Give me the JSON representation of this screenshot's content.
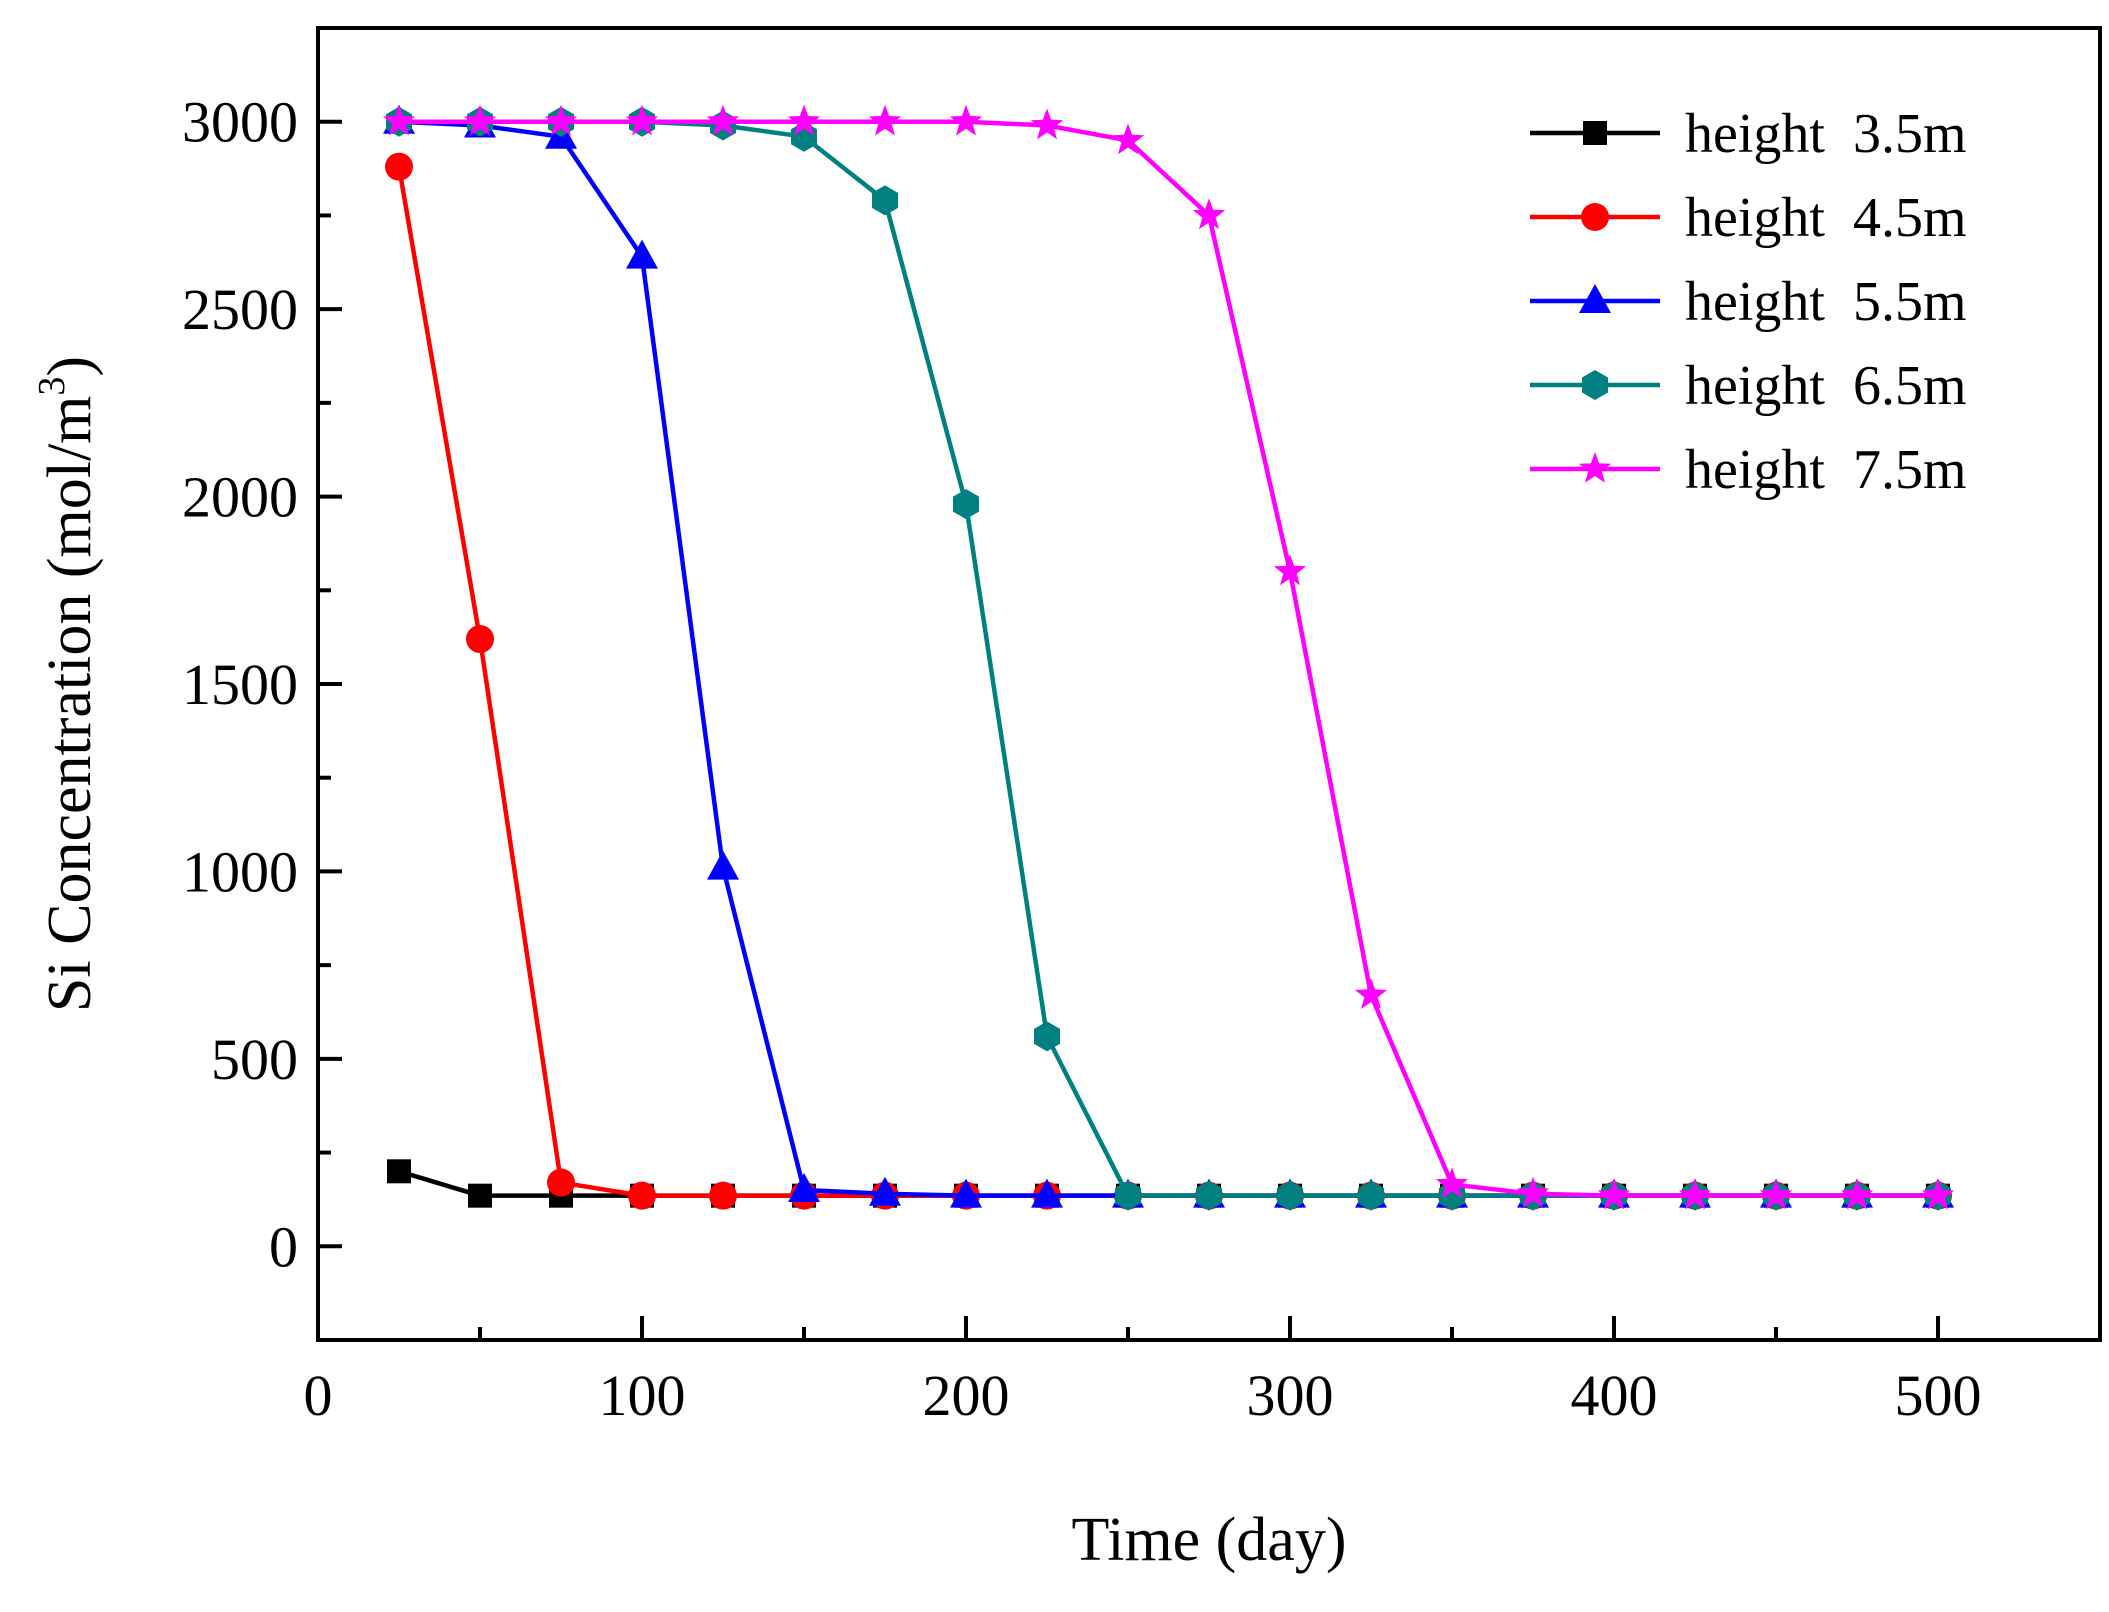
{
  "chart_data": {
    "type": "line",
    "xlabel": "Time (day)",
    "ylabel_main": "Si Concentration (mol/m",
    "ylabel_sup": "3",
    "ylabel_close": ")",
    "xlim": [
      0,
      550
    ],
    "ylim": [
      -250,
      3250
    ],
    "x_ticks": [
      0,
      100,
      200,
      300,
      400,
      500
    ],
    "x_tick_labels": [
      "0",
      "100",
      "200",
      "300",
      "400",
      "500"
    ],
    "y_ticks": [
      0,
      500,
      1000,
      1500,
      2000,
      2500,
      3000
    ],
    "y_tick_labels": [
      "0",
      "500",
      "1000",
      "1500",
      "2000",
      "2500",
      "3000"
    ],
    "grid": false,
    "legend_position": "top-right",
    "x": [
      25,
      50,
      75,
      100,
      125,
      150,
      175,
      200,
      225,
      250,
      275,
      300,
      325,
      350,
      375,
      400,
      425,
      450,
      475,
      500
    ],
    "series": [
      {
        "name": "height  3.5m",
        "color": "#000000",
        "marker": "square",
        "values": [
          200,
          135,
          135,
          135,
          135,
          135,
          135,
          135,
          135,
          135,
          135,
          135,
          135,
          135,
          135,
          135,
          135,
          135,
          135,
          135
        ]
      },
      {
        "name": "height  4.5m",
        "color": "#ff0000",
        "marker": "circle",
        "values": [
          2880,
          1620,
          170,
          135,
          135,
          135,
          135,
          135,
          135,
          135,
          135,
          135,
          135,
          135,
          135,
          135,
          135,
          135,
          135,
          135
        ]
      },
      {
        "name": "height  5.5m",
        "color": "#0000ff",
        "marker": "triangle",
        "values": [
          3000,
          2990,
          2960,
          2640,
          1010,
          150,
          140,
          135,
          135,
          135,
          135,
          135,
          135,
          135,
          135,
          135,
          135,
          135,
          135,
          135
        ]
      },
      {
        "name": "height  6.5m",
        "color": "#008080",
        "marker": "hexagon",
        "values": [
          3000,
          3000,
          3000,
          3000,
          2990,
          2960,
          2790,
          1980,
          560,
          135,
          135,
          135,
          135,
          135,
          135,
          135,
          135,
          135,
          135,
          135
        ]
      },
      {
        "name": "height  7.5m",
        "color": "#ff00ff",
        "marker": "star",
        "values": [
          3000,
          3000,
          3000,
          3000,
          3000,
          3000,
          3000,
          3000,
          2990,
          2950,
          2750,
          1800,
          670,
          165,
          140,
          135,
          135,
          135,
          135,
          135
        ]
      }
    ]
  }
}
